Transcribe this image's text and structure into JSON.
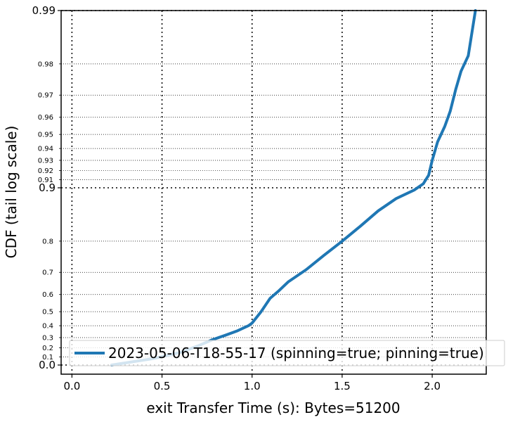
{
  "chart_data": {
    "type": "line",
    "title": "",
    "xlabel": "exit Transfer Time (s): Bytes=51200",
    "ylabel": "CDF (tail log scale)",
    "xlim": [
      -0.06,
      2.3
    ],
    "y_scale": "tail-log (1-p)",
    "grid": true,
    "legend_placement": "lower-right",
    "x_ticks": [
      {
        "value": 0.0,
        "label": "0.0"
      },
      {
        "value": 0.5,
        "label": "0.5"
      },
      {
        "value": 1.0,
        "label": "1.0"
      },
      {
        "value": 1.5,
        "label": "1.5"
      },
      {
        "value": 2.0,
        "label": "2.0"
      }
    ],
    "y_ticks_major": [
      {
        "value": 0.0,
        "label": "0.0"
      },
      {
        "value": 0.9,
        "label": "0.9"
      },
      {
        "value": 0.99,
        "label": "0.99"
      }
    ],
    "y_ticks_minor": [
      {
        "value": 0.1,
        "label": "0.1"
      },
      {
        "value": 0.2,
        "label": "0.2"
      },
      {
        "value": 0.3,
        "label": "0.3"
      },
      {
        "value": 0.4,
        "label": "0.4"
      },
      {
        "value": 0.5,
        "label": "0.5"
      },
      {
        "value": 0.6,
        "label": "0.6"
      },
      {
        "value": 0.7,
        "label": "0.7"
      },
      {
        "value": 0.8,
        "label": "0.8"
      },
      {
        "value": 0.91,
        "label": "0.91"
      },
      {
        "value": 0.92,
        "label": "0.92"
      },
      {
        "value": 0.93,
        "label": "0.93"
      },
      {
        "value": 0.94,
        "label": "0.94"
      },
      {
        "value": 0.95,
        "label": "0.95"
      },
      {
        "value": 0.96,
        "label": "0.96"
      },
      {
        "value": 0.97,
        "label": "0.97"
      },
      {
        "value": 0.98,
        "label": "0.98"
      }
    ],
    "series": [
      {
        "name": "2023-05-06-T18-55-17 (spinning=true; pinning=true)",
        "color": "#1f77b4",
        "points": [
          [
            0.22,
            0.0
          ],
          [
            0.45,
            0.08
          ],
          [
            0.6,
            0.15
          ],
          [
            0.7,
            0.22
          ],
          [
            0.78,
            0.28
          ],
          [
            0.85,
            0.32
          ],
          [
            0.92,
            0.36
          ],
          [
            0.98,
            0.4
          ],
          [
            1.0,
            0.42
          ],
          [
            1.05,
            0.5
          ],
          [
            1.1,
            0.58
          ],
          [
            1.15,
            0.62
          ],
          [
            1.2,
            0.66
          ],
          [
            1.3,
            0.71
          ],
          [
            1.4,
            0.76
          ],
          [
            1.5,
            0.8
          ],
          [
            1.6,
            0.835
          ],
          [
            1.7,
            0.865
          ],
          [
            1.8,
            0.885
          ],
          [
            1.9,
            0.897
          ],
          [
            1.95,
            0.905
          ],
          [
            1.98,
            0.915
          ],
          [
            2.0,
            0.93
          ],
          [
            2.03,
            0.945
          ],
          [
            2.07,
            0.955
          ],
          [
            2.1,
            0.963
          ],
          [
            2.13,
            0.972
          ],
          [
            2.16,
            0.978
          ],
          [
            2.2,
            0.982
          ],
          [
            2.24,
            0.99
          ]
        ]
      }
    ]
  }
}
